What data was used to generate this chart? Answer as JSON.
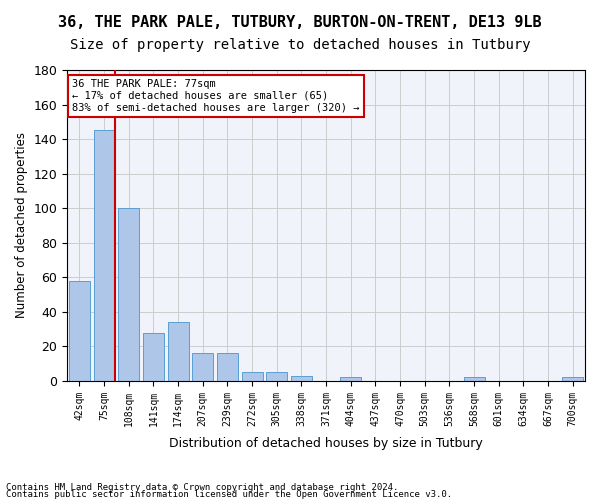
{
  "title1": "36, THE PARK PALE, TUTBURY, BURTON-ON-TRENT, DE13 9LB",
  "title2": "Size of property relative to detached houses in Tutbury",
  "xlabel": "Distribution of detached houses by size in Tutbury",
  "ylabel": "Number of detached properties",
  "bar_color": "#aec6e8",
  "bar_edge_color": "#5a9fd4",
  "categories": [
    "42sqm",
    "75sqm",
    "108sqm",
    "141sqm",
    "174sqm",
    "207sqm",
    "239sqm",
    "272sqm",
    "305sqm",
    "338sqm",
    "371sqm",
    "404sqm",
    "437sqm",
    "470sqm",
    "503sqm",
    "536sqm",
    "568sqm",
    "601sqm",
    "634sqm",
    "667sqm",
    "700sqm"
  ],
  "values": [
    58,
    145,
    100,
    28,
    34,
    16,
    16,
    5,
    5,
    3,
    0,
    2,
    0,
    0,
    0,
    0,
    2,
    0,
    0,
    0,
    2
  ],
  "ylim": [
    0,
    180
  ],
  "yticks": [
    0,
    20,
    40,
    60,
    80,
    100,
    120,
    140,
    160,
    180
  ],
  "property_line_x": 1,
  "annotation_text": "36 THE PARK PALE: 77sqm\n← 17% of detached houses are smaller (65)\n83% of semi-detached houses are larger (320) →",
  "annotation_box_color": "#ffffff",
  "annotation_box_edge_color": "#cc0000",
  "vline_color": "#cc0000",
  "footer1": "Contains HM Land Registry data © Crown copyright and database right 2024.",
  "footer2": "Contains public sector information licensed under the Open Government Licence v3.0.",
  "bg_color": "#ffffff",
  "grid_color": "#cccccc",
  "title1_fontsize": 11,
  "title2_fontsize": 10,
  "bar_width": 0.85
}
